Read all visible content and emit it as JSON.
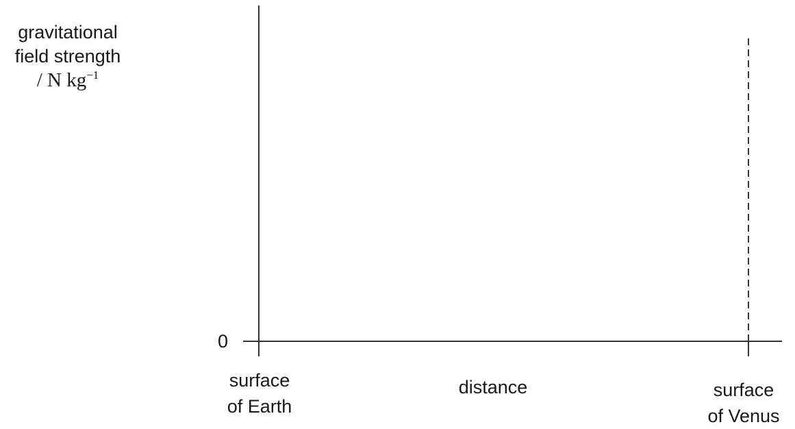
{
  "diagram": {
    "y_axis_label": {
      "line1": "gravitational",
      "line2": "field strength",
      "unit_prefix": "/ N kg",
      "unit_exponent": "−1"
    },
    "y_tick_zero": "0",
    "x_axis_label": "distance",
    "left_endpoint": {
      "line1": "surface",
      "line2": "of Earth"
    },
    "right_endpoint": {
      "line1": "surface",
      "line2": "of Venus"
    }
  }
}
